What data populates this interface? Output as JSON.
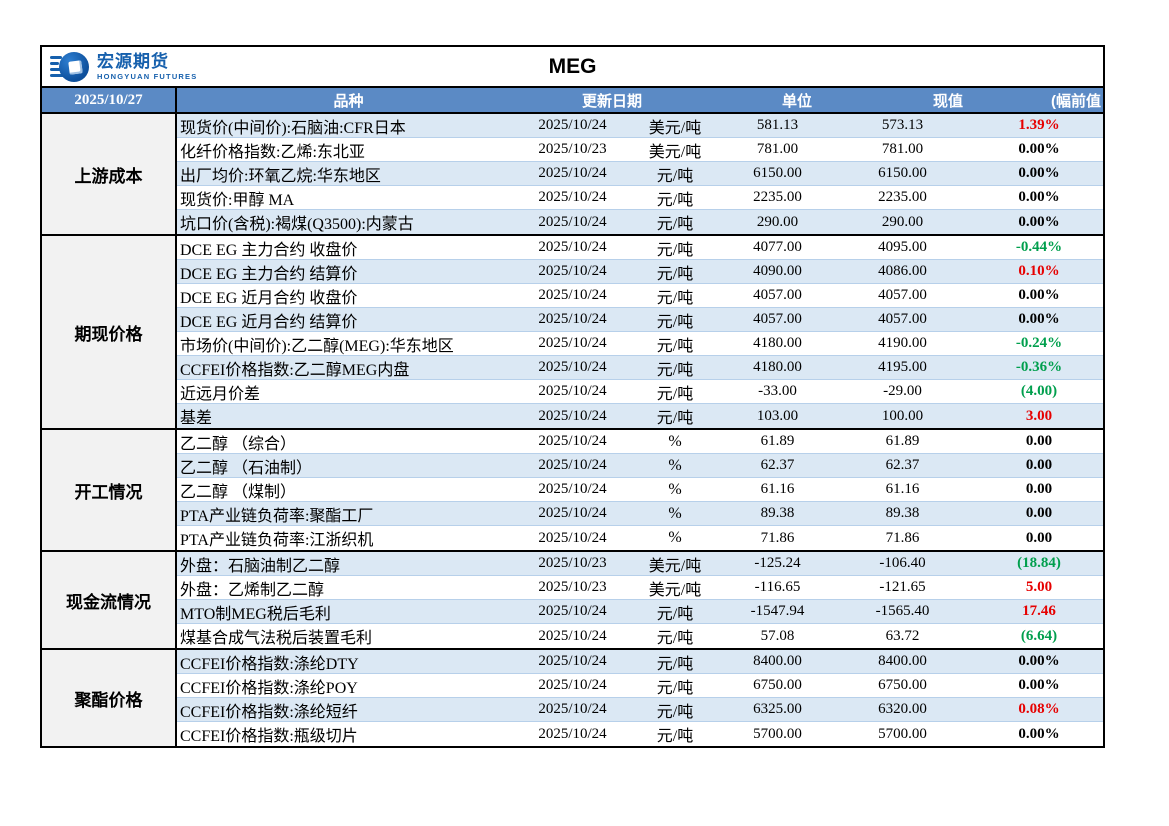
{
  "brand": {
    "name_cn": "宏源期货",
    "name_en": "HONGYUAN FUTURES"
  },
  "report": {
    "title": "MEG"
  },
  "header": {
    "date": "2025/10/27",
    "product": "品种",
    "update": "更新日期",
    "unit": "单位",
    "current": "现值",
    "change": "(幅前值"
  },
  "colors": {
    "header_bg": "#5B8AC5",
    "row_alt": "#DBE8F4",
    "up_red": "#E60000",
    "down_green": "#009F4D",
    "brand_blue": "#1660AD",
    "group_bg": "#F2F2F2"
  },
  "groups": [
    {
      "label": "上游成本",
      "rows": [
        {
          "product": "现货价(中间价):石脑油:CFR日本",
          "date": "2025/10/24",
          "unit": "美元/吨",
          "current": "581.13",
          "previous": "573.13",
          "change": "1.39%",
          "change_color": "red"
        },
        {
          "product": "化纤价格指数:乙烯:东北亚",
          "date": "2025/10/23",
          "unit": "美元/吨",
          "current": "781.00",
          "previous": "781.00",
          "change": "0.00%",
          "change_color": "black"
        },
        {
          "product": "出厂均价:环氧乙烷:华东地区",
          "date": "2025/10/24",
          "unit": "元/吨",
          "current": "6150.00",
          "previous": "6150.00",
          "change": "0.00%",
          "change_color": "black"
        },
        {
          "product": "现货价:甲醇 MA",
          "date": "2025/10/24",
          "unit": "元/吨",
          "current": "2235.00",
          "previous": "2235.00",
          "change": "0.00%",
          "change_color": "black"
        },
        {
          "product": "坑口价(含税):褐煤(Q3500):内蒙古",
          "date": "2025/10/24",
          "unit": "元/吨",
          "current": "290.00",
          "previous": "290.00",
          "change": "0.00%",
          "change_color": "black"
        }
      ]
    },
    {
      "label": "期现价格",
      "rows": [
        {
          "product": "DCE EG 主力合约 收盘价",
          "date": "2025/10/24",
          "unit": "元/吨",
          "current": "4077.00",
          "previous": "4095.00",
          "change": "-0.44%",
          "change_color": "green"
        },
        {
          "product": "DCE EG 主力合约 结算价",
          "date": "2025/10/24",
          "unit": "元/吨",
          "current": "4090.00",
          "previous": "4086.00",
          "change": "0.10%",
          "change_color": "red"
        },
        {
          "product": "DCE EG 近月合约 收盘价",
          "date": "2025/10/24",
          "unit": "元/吨",
          "current": "4057.00",
          "previous": "4057.00",
          "change": "0.00%",
          "change_color": "black"
        },
        {
          "product": "DCE EG 近月合约 结算价",
          "date": "2025/10/24",
          "unit": "元/吨",
          "current": "4057.00",
          "previous": "4057.00",
          "change": "0.00%",
          "change_color": "black"
        },
        {
          "product": "市场价(中间价):乙二醇(MEG):华东地区",
          "date": "2025/10/24",
          "unit": "元/吨",
          "current": "4180.00",
          "previous": "4190.00",
          "change": "-0.24%",
          "change_color": "green"
        },
        {
          "product": "CCFEI价格指数:乙二醇MEG内盘",
          "date": "2025/10/24",
          "unit": "元/吨",
          "current": "4180.00",
          "previous": "4195.00",
          "change": "-0.36%",
          "change_color": "green"
        },
        {
          "product": "近远月价差",
          "date": "2025/10/24",
          "unit": "元/吨",
          "current": "-33.00",
          "previous": "-29.00",
          "change": "(4.00)",
          "change_color": "green"
        },
        {
          "product": "基差",
          "date": "2025/10/24",
          "unit": "元/吨",
          "current": "103.00",
          "previous": "100.00",
          "change": "3.00",
          "change_color": "red"
        }
      ]
    },
    {
      "label": "开工情况",
      "rows": [
        {
          "product": "乙二醇 （综合）",
          "date": "2025/10/24",
          "unit": "%",
          "current": "61.89",
          "previous": "61.89",
          "change": "0.00",
          "change_color": "black"
        },
        {
          "product": "乙二醇 （石油制）",
          "date": "2025/10/24",
          "unit": "%",
          "current": "62.37",
          "previous": "62.37",
          "change": "0.00",
          "change_color": "black"
        },
        {
          "product": "乙二醇 （煤制）",
          "date": "2025/10/24",
          "unit": "%",
          "current": "61.16",
          "previous": "61.16",
          "change": "0.00",
          "change_color": "black"
        },
        {
          "product": "PTA产业链负荷率:聚酯工厂",
          "date": "2025/10/24",
          "unit": "%",
          "current": "89.38",
          "previous": "89.38",
          "change": "0.00",
          "change_color": "black"
        },
        {
          "product": "PTA产业链负荷率:江浙织机",
          "date": "2025/10/24",
          "unit": "%",
          "current": "71.86",
          "previous": "71.86",
          "change": "0.00",
          "change_color": "black"
        }
      ]
    },
    {
      "label": "现金流情况",
      "rows": [
        {
          "product": "外盘：石脑油制乙二醇",
          "date": "2025/10/23",
          "unit": "美元/吨",
          "current": "-125.24",
          "previous": "-106.40",
          "change": "(18.84)",
          "change_color": "green"
        },
        {
          "product": "外盘：乙烯制乙二醇",
          "date": "2025/10/23",
          "unit": "美元/吨",
          "current": "-116.65",
          "previous": "-121.65",
          "change": "5.00",
          "change_color": "red"
        },
        {
          "product": "MTO制MEG税后毛利",
          "date": "2025/10/24",
          "unit": "元/吨",
          "current": "-1547.94",
          "previous": "-1565.40",
          "change": "17.46",
          "change_color": "red"
        },
        {
          "product": "煤基合成气法税后装置毛利",
          "date": "2025/10/24",
          "unit": "元/吨",
          "current": "57.08",
          "previous": "63.72",
          "change": "(6.64)",
          "change_color": "green"
        }
      ]
    },
    {
      "label": "聚酯价格",
      "rows": [
        {
          "product": "CCFEI价格指数:涤纶DTY",
          "date": "2025/10/24",
          "unit": "元/吨",
          "current": "8400.00",
          "previous": "8400.00",
          "change": "0.00%",
          "change_color": "black"
        },
        {
          "product": "CCFEI价格指数:涤纶POY",
          "date": "2025/10/24",
          "unit": "元/吨",
          "current": "6750.00",
          "previous": "6750.00",
          "change": "0.00%",
          "change_color": "black"
        },
        {
          "product": "CCFEI价格指数:涤纶短纤",
          "date": "2025/10/24",
          "unit": "元/吨",
          "current": "6325.00",
          "previous": "6320.00",
          "change": "0.08%",
          "change_color": "red"
        },
        {
          "product": "CCFEI价格指数:瓶级切片",
          "date": "2025/10/24",
          "unit": "元/吨",
          "current": "5700.00",
          "previous": "5700.00",
          "change": "0.00%",
          "change_color": "black"
        }
      ]
    }
  ]
}
